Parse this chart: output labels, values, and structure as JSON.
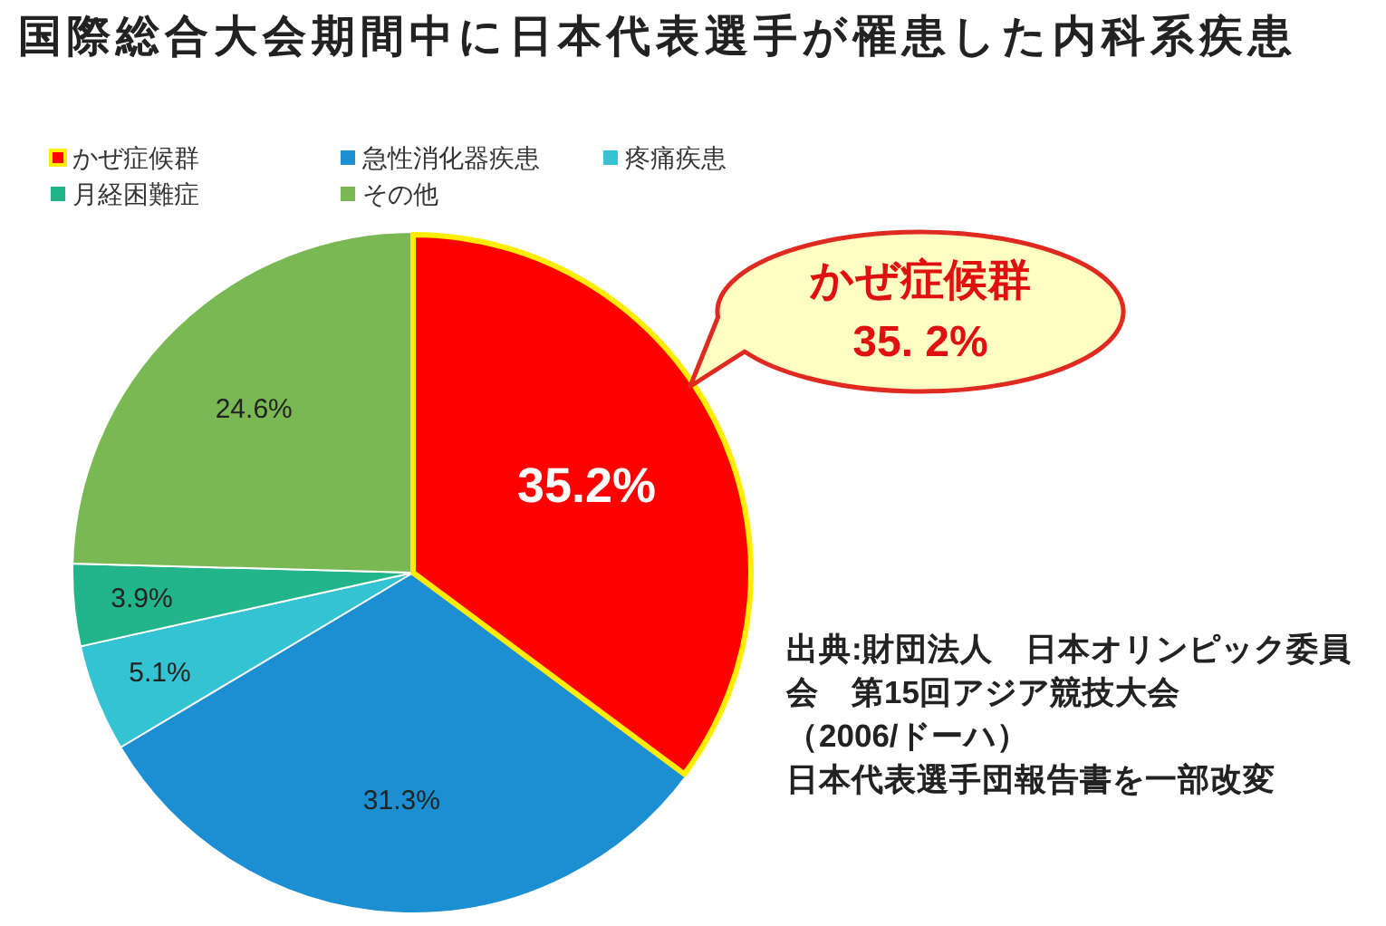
{
  "chart_data": {
    "type": "pie",
    "title": "国際総合大会期間中に日本代表選手が罹患した内科系疾患",
    "categories": [
      "かぜ症候群",
      "急性消化器疾患",
      "疼痛疾患",
      "月経困難症",
      "その他"
    ],
    "values": [
      35.2,
      31.3,
      5.1,
      3.9,
      24.6
    ],
    "colors": [
      "#ff0000",
      "#1b8fd2",
      "#33c3d3",
      "#22b58a",
      "#7ab854"
    ],
    "value_labels": [
      "35.2%",
      "31.3%",
      "5.1%",
      "3.9%",
      "24.6%"
    ],
    "legend": "top left",
    "annotations": [
      {
        "text": "かぜ症候群\n35. 2%",
        "x": "かぜ症候群"
      },
      "出典:財団法人　日本オリンピック委員会　第15回アジア競技大会",
      "（2006/ドーハ）",
      "日本代表選手団報告書を一部改変"
    ]
  }
}
